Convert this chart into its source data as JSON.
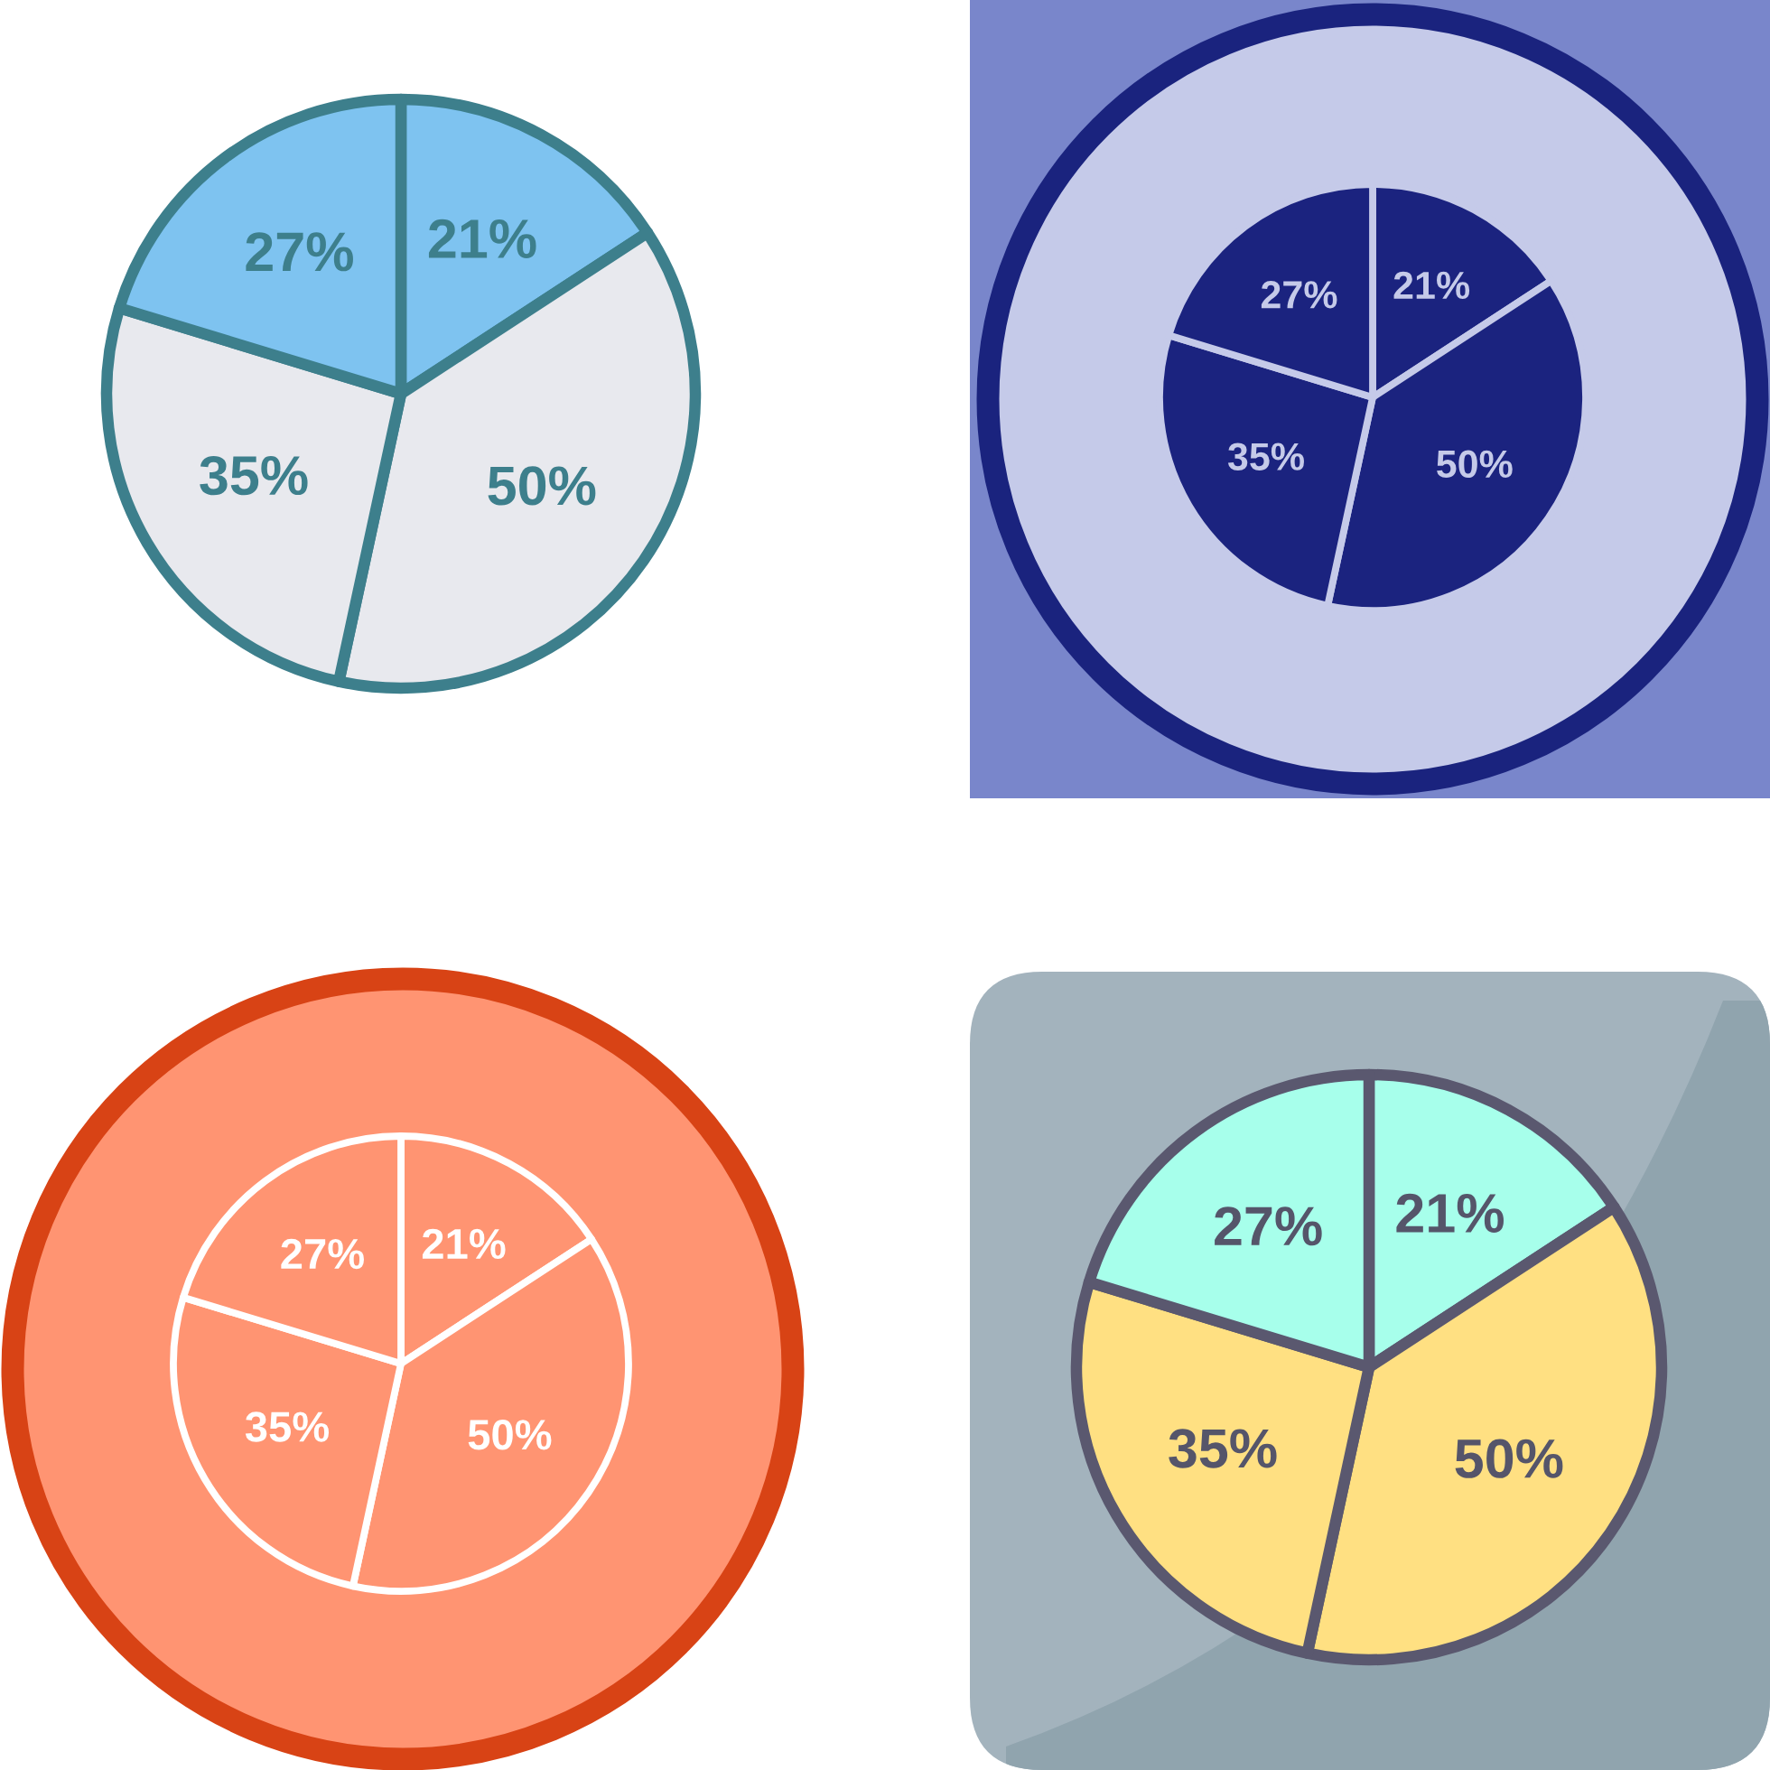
{
  "chart_data": [
    {
      "type": "pie",
      "categories": [
        null,
        null,
        null,
        null
      ],
      "values": [
        21,
        50,
        35,
        27
      ],
      "value_labels": [
        "21%",
        "50%",
        "35%",
        "27%"
      ],
      "colors": [
        "#7ec3f0",
        "#e8e9ee",
        "#e8e9ee",
        "#7ec3f0"
      ]
    },
    {
      "type": "pie",
      "categories": [
        null,
        null,
        null,
        null
      ],
      "values": [
        21,
        50,
        35,
        27
      ],
      "value_labels": [
        "21%",
        "50%",
        "35%",
        "27%"
      ],
      "colors": [
        "#1b237f",
        "#1b237f",
        "#1b237f",
        "#1b237f"
      ]
    },
    {
      "type": "pie",
      "categories": [
        null,
        null,
        null,
        null
      ],
      "values": [
        21,
        50,
        35,
        27
      ],
      "value_labels": [
        "21%",
        "50%",
        "35%",
        "27%"
      ],
      "colors": [
        "#ff9472",
        "#ff9472",
        "#ff9472",
        "#ff9472"
      ]
    },
    {
      "type": "pie",
      "categories": [
        null,
        null,
        null,
        null
      ],
      "values": [
        21,
        50,
        35,
        27
      ],
      "value_labels": [
        "21%",
        "50%",
        "35%",
        "27%"
      ],
      "colors": [
        "#a7ffeb",
        "#ffe082",
        "#ffe082",
        "#a7ffeb"
      ]
    }
  ]
}
